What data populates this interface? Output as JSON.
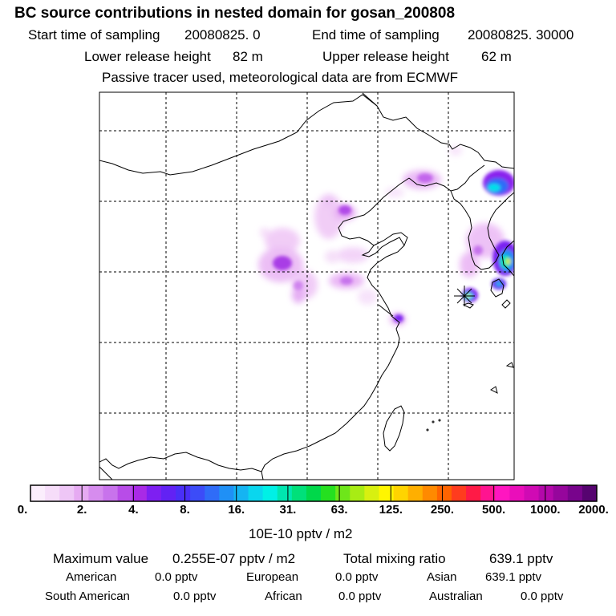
{
  "header": {
    "title": "BC  source contributions in nested domain for gosan_200808",
    "start_label": "Start time of sampling",
    "start_value": "20080825.     0",
    "end_label": "End time of sampling",
    "end_value": "20080825. 30000",
    "lower_label": "Lower release height",
    "lower_value": "82 m",
    "upper_label": "Upper release height",
    "upper_value": "62 m",
    "tracer_note": "Passive tracer used, meteorological data are from ECMWF"
  },
  "map": {
    "description_icon": "receptor-star-icon",
    "receptor_color": "#000000"
  },
  "colorbar": {
    "colors": [
      "#fbeefc",
      "#f6ddf9",
      "#eec6f6",
      "#e6aaf2",
      "#d68cee",
      "#c873ec",
      "#b84ce8",
      "#a92ae6",
      "#7e1ff1",
      "#6222f4",
      "#4a2ff7",
      "#3c4cf8",
      "#2f6cf8",
      "#1f90f6",
      "#15b4f2",
      "#0ad6ee",
      "#00f0e6",
      "#00e6b0",
      "#00e07a",
      "#00d84a",
      "#25e020",
      "#6ee61a",
      "#a8ec14",
      "#d8f010",
      "#fff600",
      "#ffd400",
      "#ffaf00",
      "#ff8a00",
      "#ff6400",
      "#ff3c1e",
      "#ff1a46",
      "#ff1490",
      "#ff16c0",
      "#ea0eba",
      "#d00ab4",
      "#b408aa",
      "#96069c",
      "#78048c",
      "#560470"
    ],
    "tick_labels": [
      "0.",
      "2.",
      "4.",
      "8.",
      "16.",
      "31.",
      "63.",
      "125.",
      "250.",
      "500.",
      "1000.",
      "2000."
    ],
    "unit_label": "10E-10 pptv / m2"
  },
  "summary": {
    "max_label": "Maximum value",
    "max_value": "0.255E-07 pptv / m2",
    "total_label": "Total mixing ratio",
    "total_value": "639.1 pptv",
    "regions": [
      {
        "name": "American",
        "value": "0.0 pptv"
      },
      {
        "name": "European",
        "value": "0.0 pptv"
      },
      {
        "name": "Asian",
        "value": "639.1 pptv"
      },
      {
        "name": "South American",
        "value": "0.0 pptv"
      },
      {
        "name": "African",
        "value": "0.0 pptv"
      },
      {
        "name": "Australian",
        "value": "0.0 pptv"
      }
    ]
  }
}
